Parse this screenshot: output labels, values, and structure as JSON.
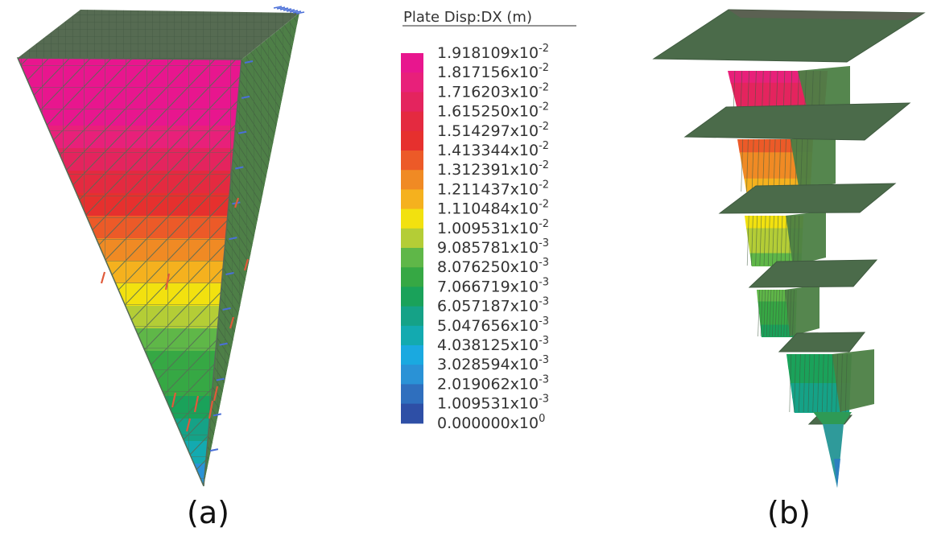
{
  "legend": {
    "title": "Plate Disp:DX  (m)",
    "levels": [
      {
        "mantissa": "1.918109x10",
        "exp": "-2"
      },
      {
        "mantissa": "1.817156x10",
        "exp": "-2"
      },
      {
        "mantissa": "1.716203x10",
        "exp": "-2"
      },
      {
        "mantissa": "1.615250x10",
        "exp": "-2"
      },
      {
        "mantissa": "1.514297x10",
        "exp": "-2"
      },
      {
        "mantissa": "1.413344x10",
        "exp": "-2"
      },
      {
        "mantissa": "1.312391x10",
        "exp": "-2"
      },
      {
        "mantissa": "1.211437x10",
        "exp": "-2"
      },
      {
        "mantissa": "1.110484x10",
        "exp": "-2"
      },
      {
        "mantissa": "1.009531x10",
        "exp": "-2"
      },
      {
        "mantissa": "9.085781x10",
        "exp": "-3"
      },
      {
        "mantissa": "8.076250x10",
        "exp": "-3"
      },
      {
        "mantissa": "7.066719x10",
        "exp": "-3"
      },
      {
        "mantissa": "6.057187x10",
        "exp": "-3"
      },
      {
        "mantissa": "5.047656x10",
        "exp": "-3"
      },
      {
        "mantissa": "4.038125x10",
        "exp": "-3"
      },
      {
        "mantissa": "3.028594x10",
        "exp": "-3"
      },
      {
        "mantissa": "2.019062x10",
        "exp": "-3"
      },
      {
        "mantissa": "1.009531x10",
        "exp": "-3"
      },
      {
        "mantissa": "0.000000x10",
        "exp": "0"
      }
    ],
    "colors_top_to_bottom": [
      "#e8168e",
      "#e8207a",
      "#e4245e",
      "#e42a40",
      "#e6302e",
      "#ec5a28",
      "#f08a24",
      "#f5b11e",
      "#f2e10f",
      "#b4cd36",
      "#5fb748",
      "#36a844",
      "#1aa25a",
      "#15a287",
      "#13aab0",
      "#1aa9e0",
      "#2a92d6",
      "#2f6fbe",
      "#2e4fa6",
      "#2e2e8a"
    ]
  },
  "panels": {
    "a": {
      "caption": "(a)"
    },
    "b": {
      "caption": "(b)"
    }
  },
  "model_colors": {
    "mesh_line": "#556b55",
    "slab": "#4b6b4a",
    "side_face": "#4c8a4c",
    "vector_blue": "#4a6fd8",
    "vector_red": "#e05a3a"
  }
}
